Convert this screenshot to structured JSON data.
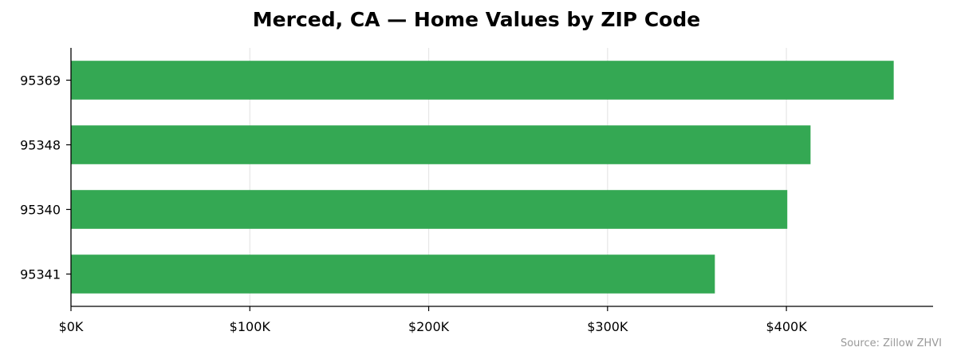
{
  "chart_data": {
    "type": "bar",
    "orientation": "horizontal",
    "title": "Merced, CA — Home Values by ZIP Code",
    "xlabel": "",
    "ylabel": "",
    "categories": [
      "95369",
      "95348",
      "95340",
      "95341"
    ],
    "values": [
      460000,
      413500,
      400500,
      360000
    ],
    "xlim": [
      0,
      482000
    ],
    "xticks": [
      0,
      100000,
      200000,
      300000,
      400000
    ],
    "xtick_labels": [
      "$0K",
      "$100K",
      "$200K",
      "$300K",
      "$400K"
    ],
    "grid": "vertical",
    "legend": "none",
    "bar_color": "#34a853",
    "source_note": "Source: Zillow ZHVI"
  }
}
